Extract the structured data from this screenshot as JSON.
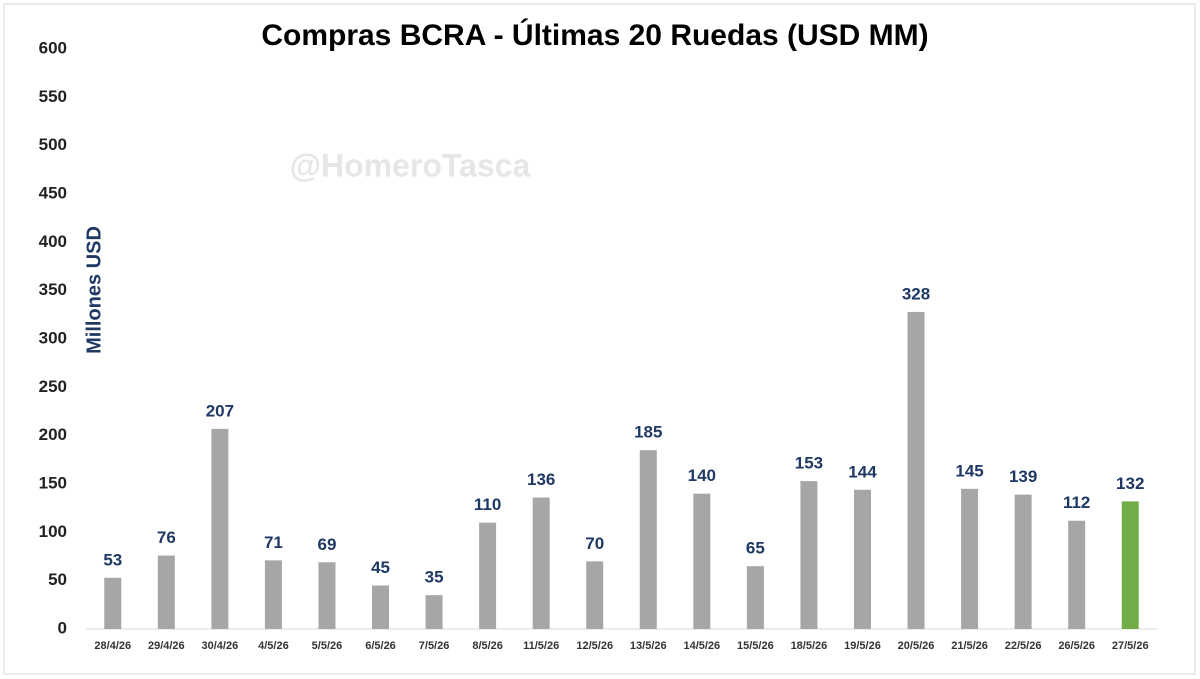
{
  "chart_data": {
    "type": "bar",
    "title": "Compras BCRA - Últimas 20 Ruedas (USD MM)",
    "watermark": "@HomeroTasca",
    "y_label": "Millones USD",
    "categories": [
      "28/4/26",
      "29/4/26",
      "30/4/26",
      "4/5/26",
      "5/5/26",
      "6/5/26",
      "7/5/26",
      "8/5/26",
      "11/5/26",
      "12/5/26",
      "13/5/26",
      "14/5/26",
      "15/5/26",
      "18/5/26",
      "19/5/26",
      "20/5/26",
      "21/5/26",
      "22/5/26",
      "26/5/26",
      "27/5/26"
    ],
    "values": [
      53,
      76,
      207,
      71,
      69,
      45,
      35,
      110,
      136,
      70,
      185,
      140,
      65,
      153,
      144,
      328,
      145,
      139,
      112,
      132
    ],
    "colors": [
      "#a6a6a6",
      "#a6a6a6",
      "#a6a6a6",
      "#a6a6a6",
      "#a6a6a6",
      "#a6a6a6",
      "#a6a6a6",
      "#a6a6a6",
      "#a6a6a6",
      "#a6a6a6",
      "#a6a6a6",
      "#a6a6a6",
      "#a6a6a6",
      "#a6a6a6",
      "#a6a6a6",
      "#a6a6a6",
      "#a6a6a6",
      "#a6a6a6",
      "#a6a6a6",
      "#70ad47"
    ],
    "ylim": [
      0,
      600
    ],
    "yticks": [
      0,
      50,
      100,
      150,
      200,
      250,
      300,
      350,
      400,
      450,
      500,
      550,
      600
    ],
    "grid": false
  }
}
